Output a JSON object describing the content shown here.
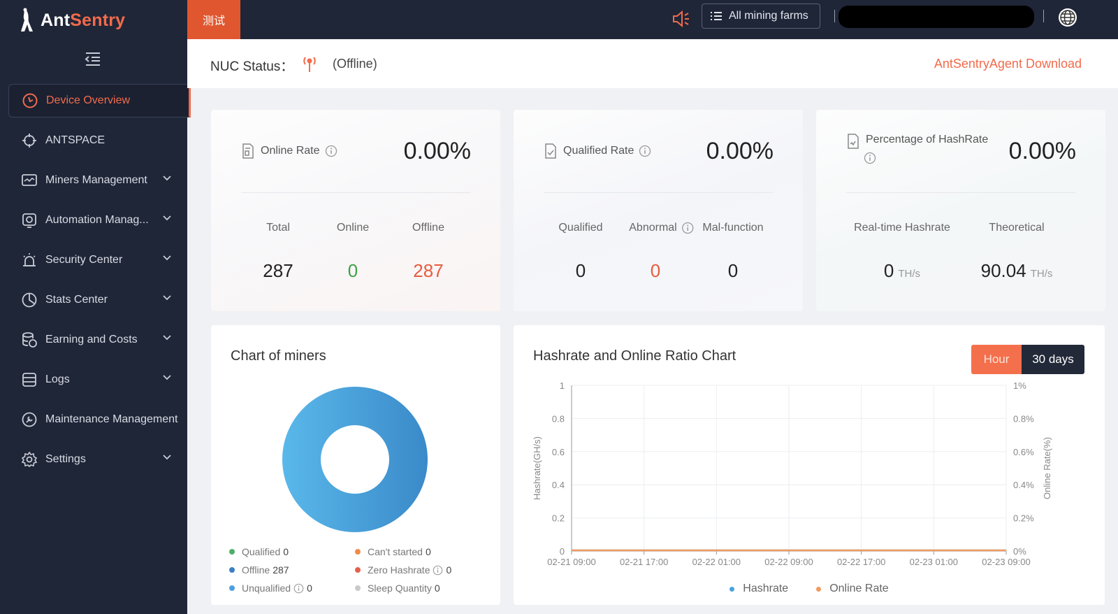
{
  "brand": {
    "name_part1": "Ant",
    "name_part2": "Sentry"
  },
  "colors": {
    "accent": "#f26b4c",
    "sidebar_bg": "#1f2638",
    "green": "#3fa14a",
    "red": "#e85b3e",
    "blue": "#3d90d4"
  },
  "sidebar": {
    "items": [
      {
        "label": "Device Overview",
        "icon": "gauge-icon",
        "active": true
      },
      {
        "label": "ANTSPACE",
        "icon": "crosshair-icon"
      },
      {
        "label": "Miners Management",
        "icon": "monitor-icon"
      },
      {
        "label": "Automation Manag...",
        "icon": "automation-icon"
      },
      {
        "label": "Security Center",
        "icon": "alarm-icon"
      },
      {
        "label": "Stats Center",
        "icon": "pie-icon"
      },
      {
        "label": "Earning and Costs",
        "icon": "database-icon"
      },
      {
        "label": "Logs",
        "icon": "logs-icon"
      },
      {
        "label": "Maintenance Management",
        "icon": "maintenance-icon"
      },
      {
        "label": "Settings",
        "icon": "gear-icon"
      }
    ]
  },
  "topbar": {
    "farm_tab": "测试",
    "farm_select": "All mining farms"
  },
  "nuc": {
    "label": "NUC Status：",
    "state": "(Offline)",
    "download": "AntSentryAgent Download"
  },
  "cards": {
    "online": {
      "title": "Online Rate",
      "value": "0.00%",
      "cols": [
        {
          "label": "Total",
          "value": "287"
        },
        {
          "label": "Online",
          "value": "0"
        },
        {
          "label": "Offline",
          "value": "287"
        }
      ]
    },
    "qualified": {
      "title": "Qualified Rate",
      "value": "0.00%",
      "cols": [
        {
          "label": "Qualified",
          "value": "0"
        },
        {
          "label": "Abnormal",
          "value": "0"
        },
        {
          "label": "Mal-function",
          "value": "0"
        }
      ]
    },
    "hashrate": {
      "title": "Percentage of HashRate",
      "value": "0.00%",
      "cols": [
        {
          "label": "Real-time Hashrate",
          "value": "0",
          "unit": "TH/s"
        },
        {
          "label": "Theoretical",
          "value": "90.04",
          "unit": "TH/s"
        }
      ]
    }
  },
  "miners_chart": {
    "title": "Chart of miners",
    "legend": [
      {
        "label": "Qualified",
        "count": "0",
        "color": "#4caf6a"
      },
      {
        "label": "Can't started",
        "count": "0",
        "color": "#f08a4b"
      },
      {
        "label": "Offline",
        "count": "287",
        "color": "#3d7fc4"
      },
      {
        "label": "Zero Hashrate",
        "count": "0",
        "color": "#e5604a"
      },
      {
        "label": "Unqualified",
        "count": "0",
        "color": "#4e9fe0"
      },
      {
        "label": "Sleep Quantity",
        "count": "0",
        "color": "#c9c9c9"
      }
    ]
  },
  "hash_chart": {
    "title": "Hashrate and Online Ratio Chart",
    "toggle": {
      "hour": "Hour",
      "days": "30 days"
    },
    "legend": {
      "hashrate": "Hashrate",
      "online": "Online Rate"
    }
  },
  "chart_data": [
    {
      "type": "pie",
      "title": "Chart of miners",
      "categories": [
        "Qualified",
        "Can't started",
        "Offline",
        "Zero Hashrate",
        "Unqualified",
        "Sleep Quantity"
      ],
      "values": [
        0,
        0,
        287,
        0,
        0,
        0
      ]
    },
    {
      "type": "line",
      "title": "Hashrate and Online Ratio Chart",
      "x": [
        "02-21 09:00",
        "02-21 17:00",
        "02-22 01:00",
        "02-22 09:00",
        "02-22 17:00",
        "02-23 01:00",
        "02-23 09:00"
      ],
      "y_ticks": [
        "0",
        "0.2",
        "0.4",
        "0.6",
        "0.8",
        "1"
      ],
      "y2_ticks": [
        "0%",
        "0.2%",
        "0.4%",
        "0.6%",
        "0.8%",
        "1%"
      ],
      "ylabel": "Hashrate(GH/s)",
      "y2label": "Online Rate(%)",
      "ylim": [
        0,
        1
      ],
      "y2lim": [
        0,
        1
      ],
      "series": [
        {
          "name": "Hashrate",
          "axis": "left",
          "values": [
            0,
            0,
            0,
            0,
            0,
            0,
            0
          ]
        },
        {
          "name": "Online Rate",
          "axis": "right",
          "values": [
            0,
            0,
            0,
            0,
            0,
            0,
            0
          ]
        }
      ],
      "grid": true,
      "legend": "bottom"
    }
  ]
}
